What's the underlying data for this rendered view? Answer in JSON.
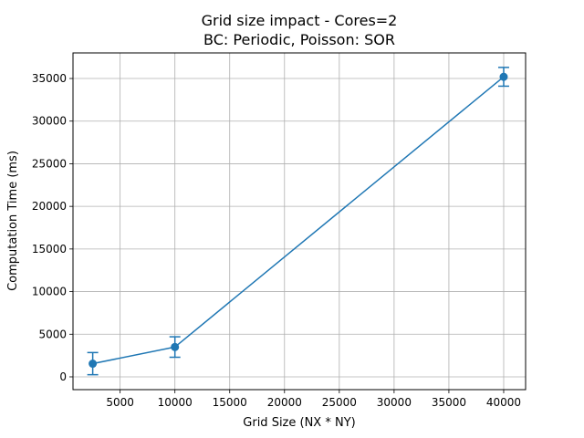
{
  "chart_data": {
    "type": "line",
    "title": "Grid size impact - Cores=2",
    "subtitle": "BC: Periodic, Poisson: SOR",
    "xlabel": "Grid Size (NX * NY)",
    "ylabel": "Computation Time (ms)",
    "xlim": [
      700,
      42000
    ],
    "ylim": [
      -1500,
      38000
    ],
    "xticks": [
      5000,
      10000,
      15000,
      20000,
      25000,
      30000,
      35000,
      40000
    ],
    "yticks": [
      0,
      5000,
      10000,
      15000,
      20000,
      25000,
      30000,
      35000
    ],
    "grid": true,
    "series": [
      {
        "x": [
          2500,
          10000,
          40000
        ],
        "y": [
          1550,
          3500,
          35200
        ],
        "yerr": [
          1300,
          1200,
          1100
        ],
        "color": "#1f77b4",
        "marker": "circle"
      }
    ]
  }
}
